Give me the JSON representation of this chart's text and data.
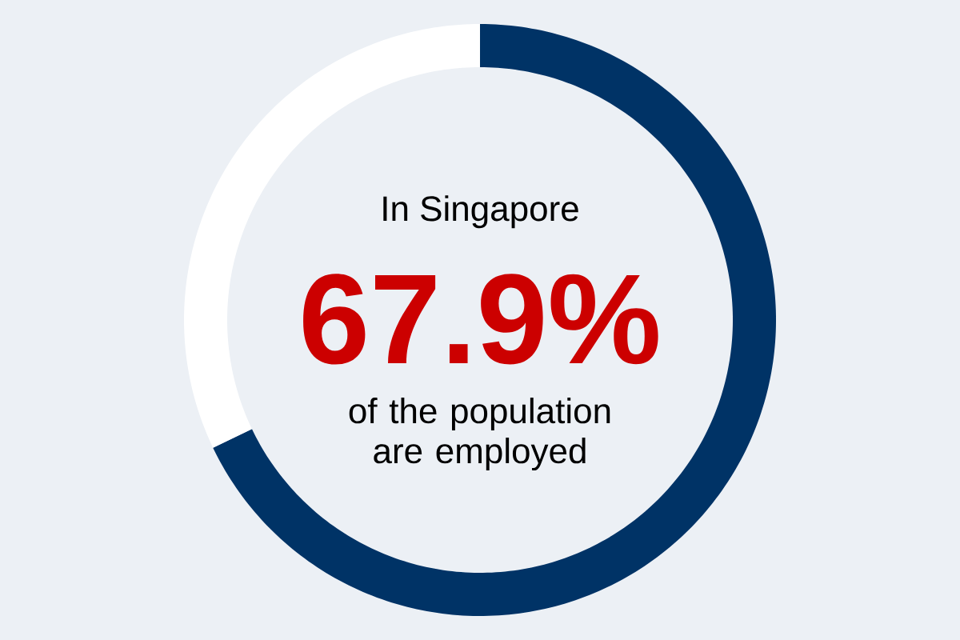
{
  "chart_data": {
    "type": "donut",
    "title": "In Singapore",
    "categories": [
      null,
      null
    ],
    "values": [
      67.9,
      32.1
    ],
    "colors": [
      "#003366",
      "#ffffff"
    ],
    "value_labels": [
      "67.9%",
      null
    ],
    "annotations": [
      "of the population are employed"
    ]
  }
}
